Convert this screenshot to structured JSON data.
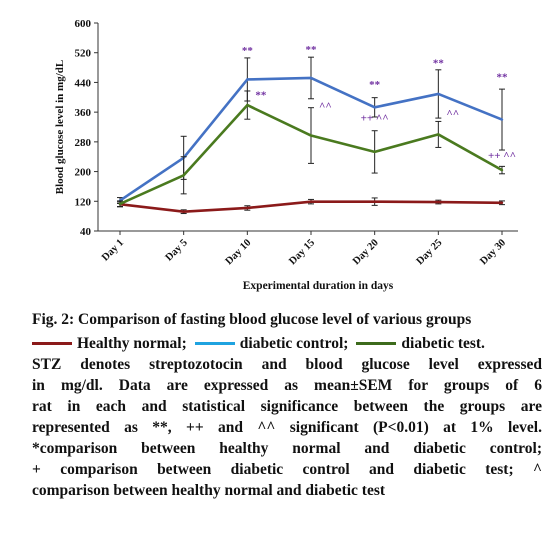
{
  "chart_data": {
    "type": "line",
    "categories": [
      "Day 1",
      "Day 5",
      "Day 10",
      "Day 15",
      "Day 20",
      "Day 25",
      "Day 30"
    ],
    "xlabel": "Experimental duration in days",
    "ylabel": "Blood glucose level in mg/dL",
    "ylim": [
      40,
      600
    ],
    "yticks": [
      40,
      120,
      200,
      280,
      360,
      440,
      520,
      600
    ],
    "series": [
      {
        "name": "Healthy normal",
        "color": "#8b1a1a",
        "values": [
          112,
          92,
          102,
          119,
          119,
          118,
          116
        ],
        "errors": [
          6,
          5,
          6,
          6,
          10,
          5,
          5
        ]
      },
      {
        "name": "diabetic control",
        "color": "#4472c4",
        "values": [
          122,
          237,
          448,
          452,
          373,
          409,
          340
        ],
        "errors": [
          8,
          58,
          58,
          56,
          26,
          65,
          82
        ]
      },
      {
        "name": "diabetic test",
        "color": "#4a7a1f",
        "values": [
          113,
          190,
          379,
          297,
          253,
          300,
          204
        ],
        "errors": [
          8,
          50,
          38,
          75,
          57,
          35,
          10
        ]
      }
    ],
    "annotations": [
      {
        "category": "Day 10",
        "y": 517,
        "text": "**"
      },
      {
        "category": "Day 10",
        "y": 397,
        "text": "**",
        "offset": "right"
      },
      {
        "category": "Day 15",
        "y": 519,
        "text": "**"
      },
      {
        "category": "Day 15",
        "y": 367,
        "text": "^^",
        "offset": "right"
      },
      {
        "category": "Day 20",
        "y": 425,
        "text": "**"
      },
      {
        "category": "Day 20",
        "y": 335,
        "text": "++ ^^"
      },
      {
        "category": "Day 25",
        "y": 483,
        "text": "**"
      },
      {
        "category": "Day 25",
        "y": 347,
        "text": "^^",
        "offset": "right"
      },
      {
        "category": "Day 30",
        "y": 445,
        "text": "**"
      },
      {
        "category": "Day 30",
        "y": 234,
        "text": "++ ^^"
      }
    ]
  },
  "caption": {
    "fig_title": "Fig. 2: Comparison of fasting blood glucose level of various groups",
    "legend_healthy": "Healthy normal;",
    "legend_control": "diabetic control;",
    "legend_test": "diabetic test.",
    "line_1": "STZ denotes streptozotocin and blood glucose level expressed",
    "line_2": "in mg/dl. Data are expressed as mean±SEM for groups of 6",
    "line_3": "rat in each and statistical significance between the groups are",
    "line_4": "represented as **, ++ and ^^ significant (P<0.01) at 1% level.",
    "line_5": "*comparison between healthy normal and diabetic control;",
    "line_6": "+ comparison between diabetic control and diabetic test; ^",
    "line_7": "comparison between healthy normal and diabetic test"
  }
}
